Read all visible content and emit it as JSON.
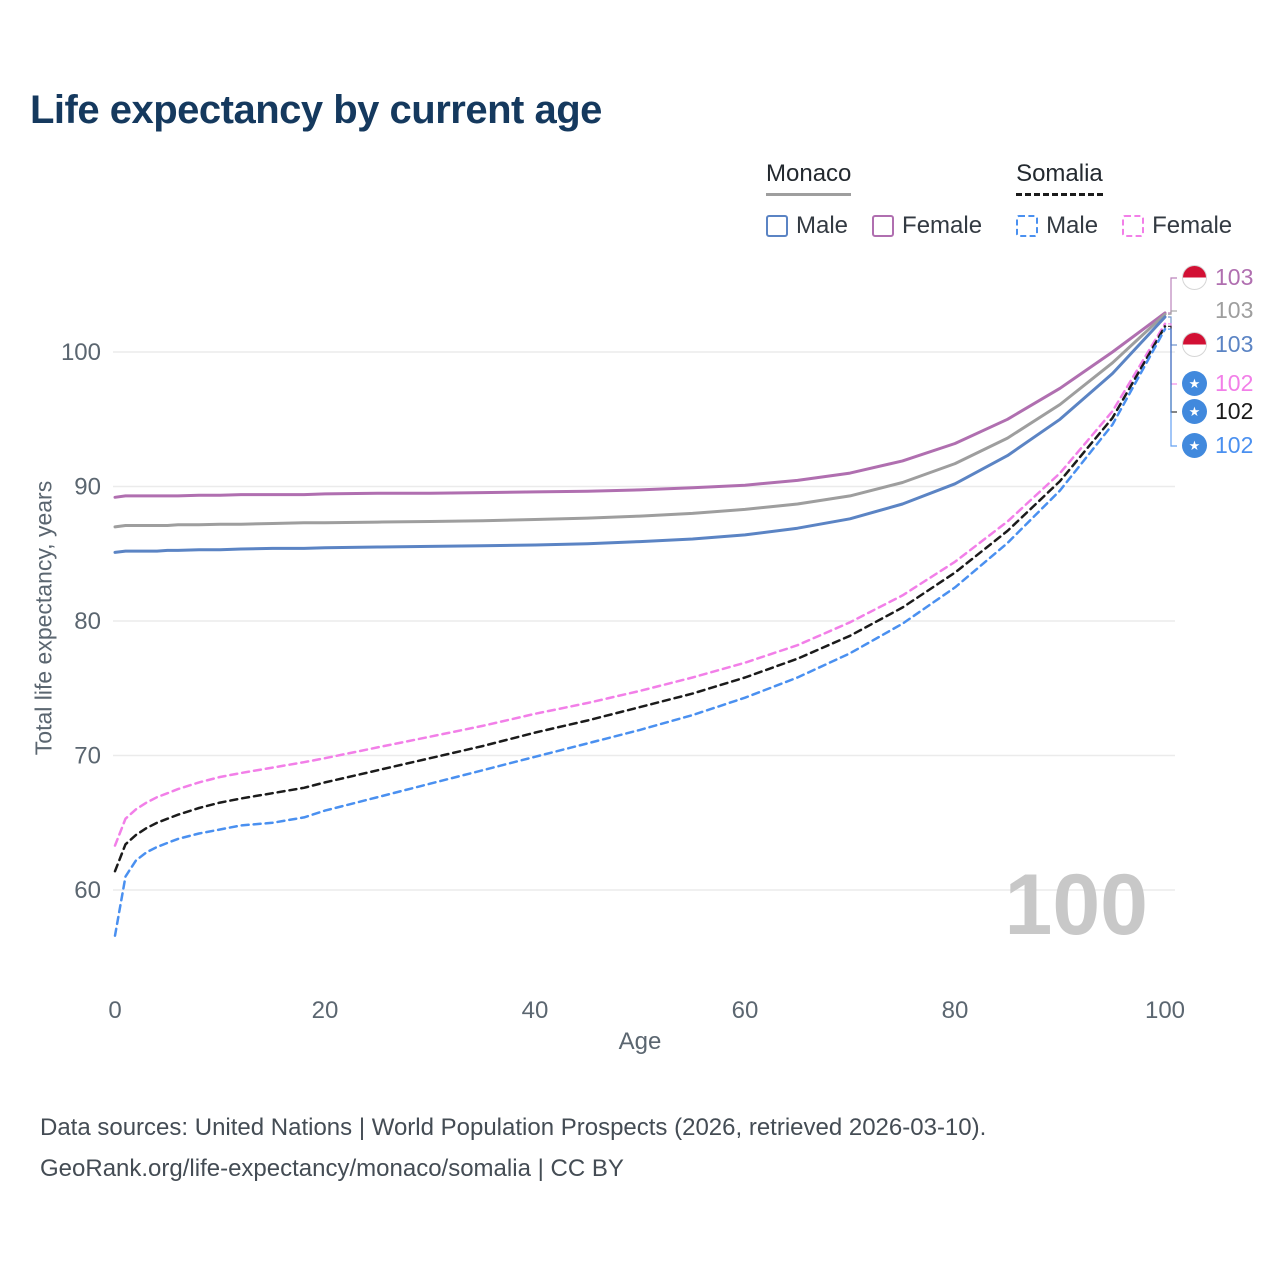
{
  "chart_data": {
    "type": "line",
    "title": "Life expectancy by current age",
    "xlabel": "Age",
    "ylabel": "Total life expectancy, years",
    "xlim": [
      0,
      100
    ],
    "ylim": [
      56,
      104
    ],
    "xticks": [
      0,
      20,
      40,
      60,
      80,
      100
    ],
    "yticks": [
      60,
      70,
      80,
      90,
      100
    ],
    "grid": "horizontal",
    "watermark": "100",
    "x": [
      0,
      1,
      2,
      3,
      4,
      5,
      6,
      8,
      10,
      12,
      15,
      18,
      20,
      25,
      30,
      35,
      40,
      45,
      50,
      55,
      60,
      65,
      70,
      75,
      80,
      85,
      90,
      95,
      100
    ],
    "series": [
      {
        "name": "Monaco Female",
        "country": "Monaco",
        "sex": "Female",
        "color": "#b06fb0",
        "dash": false,
        "end_label": "103",
        "flag": "monaco",
        "values": [
          89.2,
          89.3,
          89.3,
          89.3,
          89.3,
          89.3,
          89.3,
          89.35,
          89.35,
          89.4,
          89.4,
          89.4,
          89.45,
          89.5,
          89.5,
          89.55,
          89.6,
          89.65,
          89.75,
          89.9,
          90.1,
          90.45,
          91.0,
          91.9,
          93.2,
          95.0,
          97.3,
          100.0,
          102.9
        ]
      },
      {
        "name": "Monaco Both",
        "country": "Monaco",
        "sex": "Both",
        "color": "#9e9e9e",
        "dash": false,
        "end_label": "103",
        "flag": "none",
        "values": [
          87.0,
          87.1,
          87.1,
          87.1,
          87.1,
          87.1,
          87.15,
          87.15,
          87.2,
          87.2,
          87.25,
          87.3,
          87.3,
          87.35,
          87.4,
          87.45,
          87.55,
          87.65,
          87.8,
          88.0,
          88.3,
          88.7,
          89.3,
          90.3,
          91.7,
          93.6,
          96.1,
          99.2,
          102.8
        ]
      },
      {
        "name": "Monaco Male",
        "country": "Monaco",
        "sex": "Male",
        "color": "#5b84c4",
        "dash": false,
        "end_label": "103",
        "flag": "monaco",
        "values": [
          85.1,
          85.2,
          85.2,
          85.2,
          85.2,
          85.25,
          85.25,
          85.3,
          85.3,
          85.35,
          85.4,
          85.4,
          85.45,
          85.5,
          85.55,
          85.6,
          85.65,
          85.75,
          85.9,
          86.1,
          86.4,
          86.9,
          87.6,
          88.7,
          90.2,
          92.3,
          95.0,
          98.4,
          102.6
        ]
      },
      {
        "name": "Somalia Female",
        "country": "Somalia",
        "sex": "Female",
        "color": "#f27fe8",
        "dash": true,
        "end_label": "102",
        "flag": "somalia",
        "values": [
          63.3,
          65.3,
          66.0,
          66.5,
          66.9,
          67.2,
          67.5,
          68.0,
          68.4,
          68.7,
          69.1,
          69.5,
          69.8,
          70.6,
          71.4,
          72.2,
          73.1,
          73.9,
          74.8,
          75.8,
          76.9,
          78.2,
          79.9,
          81.9,
          84.4,
          87.4,
          91.0,
          95.6,
          102.1
        ]
      },
      {
        "name": "Somalia Both",
        "country": "Somalia",
        "sex": "Both",
        "color": "#1b1b1b",
        "dash": true,
        "end_label": "102",
        "flag": "somalia",
        "values": [
          61.4,
          63.4,
          64.1,
          64.6,
          65.0,
          65.3,
          65.6,
          66.1,
          66.5,
          66.8,
          67.2,
          67.6,
          68.0,
          68.9,
          69.8,
          70.7,
          71.7,
          72.6,
          73.6,
          74.6,
          75.8,
          77.2,
          78.9,
          81.0,
          83.6,
          86.7,
          90.4,
          95.1,
          101.9
        ]
      },
      {
        "name": "Somalia Male",
        "country": "Somalia",
        "sex": "Male",
        "color": "#4a90f0",
        "dash": true,
        "end_label": "102",
        "flag": "somalia",
        "values": [
          56.6,
          61.0,
          62.2,
          62.8,
          63.2,
          63.5,
          63.8,
          64.2,
          64.5,
          64.8,
          65.0,
          65.4,
          65.9,
          66.9,
          67.9,
          68.9,
          69.9,
          70.9,
          71.9,
          73.0,
          74.3,
          75.8,
          77.6,
          79.8,
          82.5,
          85.8,
          89.7,
          94.6,
          101.7
        ]
      }
    ]
  },
  "legend": {
    "groups": [
      {
        "label": "Monaco",
        "line_style": "solid",
        "color": "#9e9e9e",
        "items": [
          {
            "label": "Male",
            "color": "#5b84c4",
            "dash": false
          },
          {
            "label": "Female",
            "color": "#b06fb0",
            "dash": false
          }
        ]
      },
      {
        "label": "Somalia",
        "line_style": "dashed",
        "color": "#1b1b1b",
        "items": [
          {
            "label": "Male",
            "color": "#4a90f0",
            "dash": true
          },
          {
            "label": "Female",
            "color": "#f27fe8",
            "dash": true
          }
        ]
      }
    ]
  },
  "footer": {
    "line1": "Data sources: United Nations | World Population Prospects (2026, retrieved 2026-03-10).",
    "line2": "GeoRank.org/life-expectancy/monaco/somalia | CC BY"
  }
}
